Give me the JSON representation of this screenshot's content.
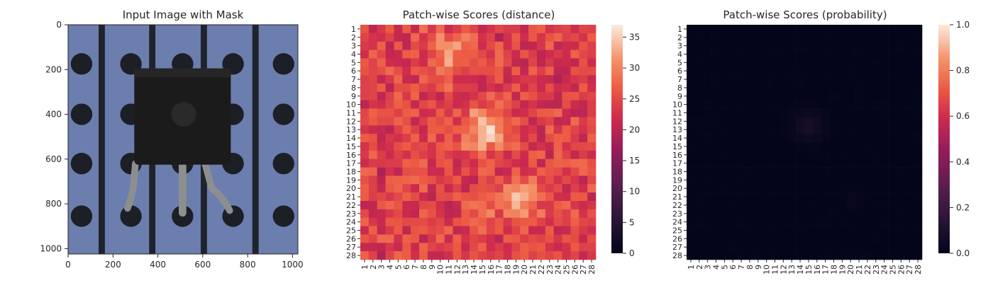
{
  "chart_data": [
    {
      "type": "image",
      "title": "Input Image with Mask",
      "xlim": [
        0,
        1024
      ],
      "ylim": [
        1024,
        0
      ],
      "x_ticks": [
        0,
        200,
        400,
        600,
        800,
        1000
      ],
      "y_ticks": [
        0,
        200,
        400,
        600,
        800,
        1000
      ],
      "colors": {
        "background": "#6c7eae",
        "stripe": "#1f242c",
        "hole": "#1c1f25",
        "component": "#1b1b1b",
        "lead": "#8d8f8f"
      }
    },
    {
      "type": "heatmap",
      "title": "Patch-wise Scores (distance)",
      "x_tick_labels": [
        "1",
        "2",
        "3",
        "4",
        "5",
        "6",
        "7",
        "8",
        "9",
        "10",
        "11",
        "12",
        "13",
        "14",
        "15",
        "16",
        "17",
        "18",
        "19",
        "20",
        "21",
        "22",
        "23",
        "24",
        "25",
        "26",
        "27",
        "28"
      ],
      "y_tick_labels": [
        "1",
        "2",
        "3",
        "4",
        "5",
        "6",
        "7",
        "8",
        "9",
        "10",
        "11",
        "12",
        "13",
        "14",
        "15",
        "16",
        "17",
        "18",
        "19",
        "20",
        "21",
        "22",
        "23",
        "24",
        "25",
        "26",
        "27",
        "28"
      ],
      "colorbar_ticks": [
        0,
        5,
        10,
        15,
        20,
        25,
        30,
        35
      ],
      "vmin": 0,
      "vmax": 37,
      "colormap": "rocket",
      "hot_spots": [
        {
          "row": 13,
          "col": 15,
          "value": 36
        },
        {
          "row": 21,
          "col": 20,
          "value": 34
        },
        {
          "row": 4,
          "col": 10,
          "value": 31
        }
      ]
    },
    {
      "type": "heatmap",
      "title": "Patch-wise Scores (probability)",
      "x_tick_labels": [
        "1",
        "2",
        "3",
        "4",
        "5",
        "6",
        "7",
        "8",
        "9",
        "10",
        "11",
        "12",
        "13",
        "14",
        "15",
        "16",
        "17",
        "18",
        "19",
        "20",
        "21",
        "22",
        "23",
        "24",
        "25",
        "26",
        "27",
        "28"
      ],
      "y_tick_labels": [
        "1",
        "2",
        "3",
        "4",
        "5",
        "6",
        "7",
        "8",
        "9",
        "10",
        "11",
        "12",
        "13",
        "14",
        "15",
        "16",
        "17",
        "18",
        "19",
        "20",
        "21",
        "22",
        "23",
        "24",
        "25",
        "26",
        "27",
        "28"
      ],
      "colorbar_ticks": [
        "0.0",
        "0.2",
        "0.4",
        "0.6",
        "0.8",
        "1.0"
      ],
      "vmin": 0,
      "vmax": 1,
      "colormap": "rocket",
      "hot_spots": [
        {
          "row": 12,
          "col": 15,
          "value": 0.08
        },
        {
          "row": 13,
          "col": 15,
          "value": 0.07
        },
        {
          "row": 11,
          "col": 16,
          "value": 0.05
        }
      ]
    }
  ]
}
